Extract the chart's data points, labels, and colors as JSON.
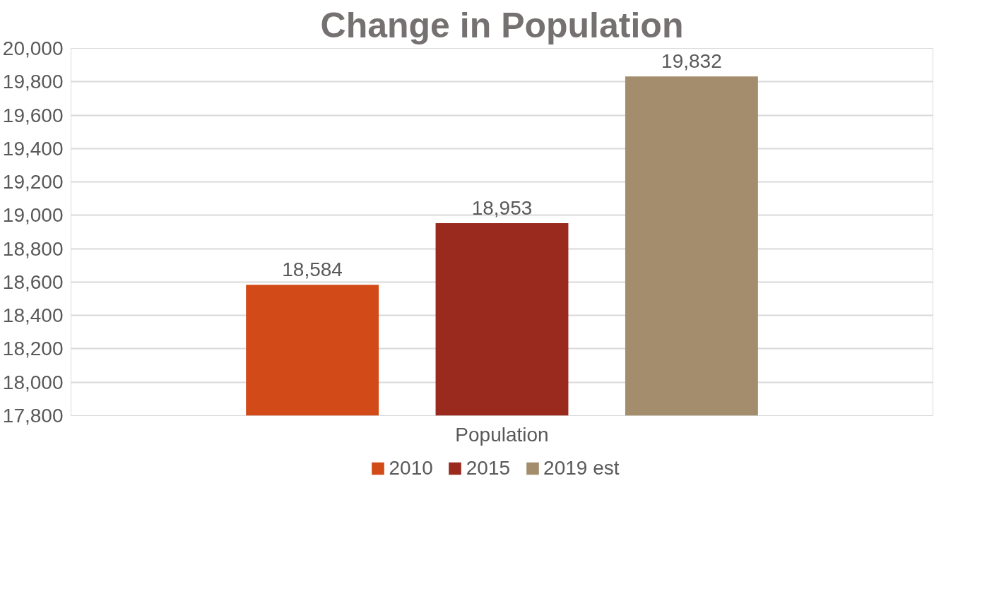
{
  "chart_data": {
    "type": "bar",
    "title": "Change in Population",
    "categories": [
      "Population"
    ],
    "series": [
      {
        "name": "2010",
        "color": "#d24a17",
        "values": [
          18584
        ],
        "value_labels": [
          "18,584"
        ]
      },
      {
        "name": "2015",
        "color": "#9a2a1e",
        "values": [
          18953
        ],
        "value_labels": [
          "18,953"
        ]
      },
      {
        "name": "2019 est",
        "color": "#a38d6d",
        "values": [
          19832
        ],
        "value_labels": [
          "19,832"
        ]
      }
    ],
    "ylim": [
      17800,
      20000
    ],
    "yticks": [
      {
        "value": 17800,
        "label": "17,800"
      },
      {
        "value": 18000,
        "label": "18,000"
      },
      {
        "value": 18200,
        "label": "18,200"
      },
      {
        "value": 18400,
        "label": "18,400"
      },
      {
        "value": 18600,
        "label": "18,600"
      },
      {
        "value": 18800,
        "label": "18,800"
      },
      {
        "value": 19000,
        "label": "19,000"
      },
      {
        "value": 19200,
        "label": "19,200"
      },
      {
        "value": 19400,
        "label": "19,400"
      },
      {
        "value": 19600,
        "label": "19,600"
      },
      {
        "value": 19800,
        "label": "19,800"
      },
      {
        "value": 20000,
        "label": "20,000"
      }
    ],
    "grid": "y",
    "legend": "bottom"
  }
}
